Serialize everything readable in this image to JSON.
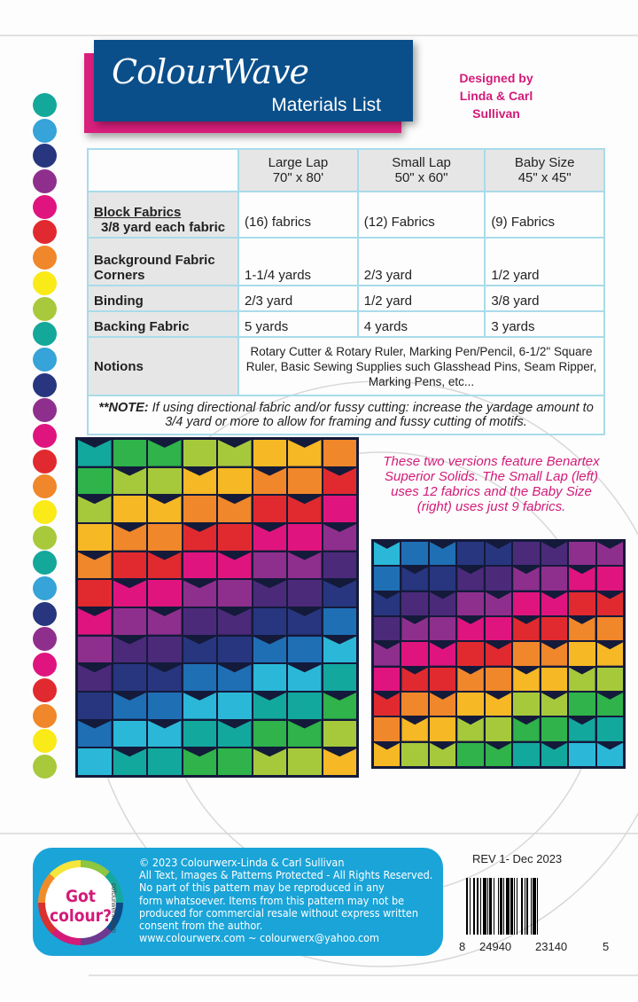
{
  "header": {
    "logo": "ColourWave",
    "subtitle": "Materials List",
    "designed_by": "Designed by",
    "designers": "Linda & Carl Sullivan"
  },
  "side_dots": [
    "#14a89a",
    "#36a3d9",
    "#27367f",
    "#8f2f8d",
    "#e0147f",
    "#e12a2f",
    "#f0872a",
    "#faea17",
    "#a7c93b",
    "#14a89a",
    "#36a3d9",
    "#27367f",
    "#8f2f8d",
    "#e0147f",
    "#e12a2f",
    "#f0872a",
    "#faea17",
    "#a7c93b",
    "#14a89a",
    "#36a3d9",
    "#27367f",
    "#8f2f8d",
    "#e0147f",
    "#e12a2f",
    "#f0872a",
    "#faea17",
    "#a7c93b"
  ],
  "table": {
    "columns": [
      {
        "name": "Large Lap",
        "size": "70\" x 80'"
      },
      {
        "name": "Small Lap",
        "size": "50\" x 60\""
      },
      {
        "name": "Baby Size",
        "size": "45\" x 45\""
      }
    ],
    "rows": [
      {
        "label": "Block Fabrics",
        "sublabel": "3/8 yard each fabric",
        "values": [
          "(16) fabrics",
          "(12) Fabrics",
          "(9) Fabrics"
        ]
      },
      {
        "label": "Background Fabric",
        "sublabel": "Corners",
        "values": [
          "1-1/4 yards",
          "2/3 yard",
          "1/2 yard"
        ]
      },
      {
        "label": "Binding",
        "values": [
          "2/3 yard",
          "1/2 yard",
          "3/8 yard"
        ]
      },
      {
        "label": "Backing Fabric",
        "values": [
          "5 yards",
          "4 yards",
          "3 yards"
        ]
      }
    ],
    "notions_label": "Notions",
    "notions": "Rotary Cutter & Rotary Ruler, Marking Pen/Pencil,  6-1/2\" Square Ruler, Basic Sewing Supplies such Glasshead Pins, Seam Ripper, Marking Pens, etc...",
    "note_label": "**NOTE:",
    "note": " If using directional fabric and/or fussy cutting:  increase the yardage amount to 3/4 yard or more to allow for framing and fussy cutting of motifs."
  },
  "caption": "These two versions feature Benartex Superior Solids. The Small Lap (left) uses 12 fabrics and the Baby Size (right) uses just 9 fabrics.",
  "quilt_palette": [
    "#13a89e",
    "#2fb34a",
    "#a6c93c",
    "#f6b824",
    "#f0872a",
    "#e12a2f",
    "#e0147f",
    "#8f2f8d",
    "#4b2a7a",
    "#27367f",
    "#1f6fb5",
    "#2bb8d8"
  ],
  "background_color": "#141a3a",
  "footer": {
    "badge_text": "Got colour?",
    "badge_site": "colourwerx.com",
    "lines": "© 2023 Colourwerx-Linda & Carl Sullivan\nAll Text, Images & Patterns Protected - All Rights Reserved.\nNo part of this pattern may be reproduced  in any\nform whatsoever.   Items from this pattern may not be\nproduced for commercial resale without express written\nconsent from the author.\nwww.colourwerx.com ~ colourwerx@yahoo.com",
    "revision": "REV 1- Dec 2023",
    "barcode_digits": [
      "8",
      "24940",
      "23140",
      "5"
    ]
  }
}
